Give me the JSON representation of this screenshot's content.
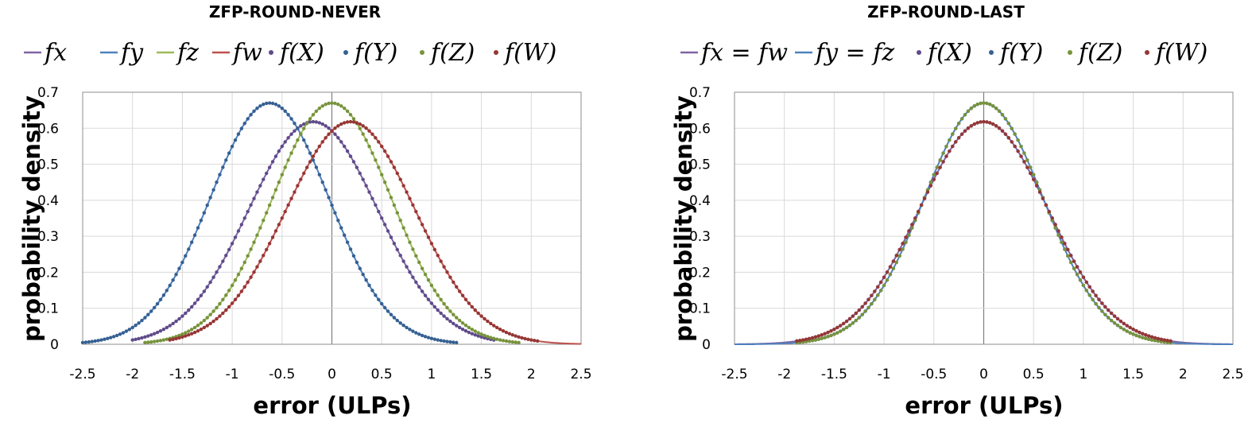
{
  "colors": {
    "fx": "#8064a2",
    "fy": "#4f81bd",
    "fz": "#9bbb59",
    "fw": "#c0504d",
    "fX": "#5f4b8b",
    "fY": "#366092",
    "fZ": "#77933c",
    "fW": "#953735"
  },
  "chart_data": [
    {
      "type": "line",
      "title": "ZFP-ROUND-NEVER",
      "xlabel": "error (ULPs)",
      "ylabel": "probability density",
      "xlim": [
        -2.5,
        2.5
      ],
      "ylim": [
        0,
        0.7
      ],
      "xticks": [
        "-2.5",
        "-2",
        "-1.5",
        "-1",
        "-0.5",
        "0",
        "0.5",
        "1",
        "1.5",
        "2",
        "2.5"
      ],
      "yticks": [
        "0",
        "0.1",
        "0.2",
        "0.3",
        "0.4",
        "0.5",
        "0.6",
        "0.7"
      ],
      "grid": true,
      "legend": "top",
      "series": [
        {
          "name": "fx",
          "kind": "line",
          "color_key": "fx",
          "mean": -0.1875,
          "sd": 0.6455,
          "peak": 0.618,
          "min": -2.0,
          "max": 1.625
        },
        {
          "name": "fy",
          "kind": "line",
          "color_key": "fy",
          "mean": -0.625,
          "sd": 0.5954,
          "peak": 0.67,
          "min": -2.5,
          "max": 1.25
        },
        {
          "name": "fz",
          "kind": "line",
          "color_key": "fz",
          "mean": 0.0,
          "sd": 0.5954,
          "peak": 0.67,
          "min": -1.875,
          "max": 1.875
        },
        {
          "name": "fw",
          "kind": "line",
          "color_key": "fw",
          "mean": 0.1875,
          "sd": 0.6455,
          "peak": 0.618,
          "min": -1.625,
          "max": 2.5
        },
        {
          "name": "f(X)",
          "kind": "markers",
          "color_key": "fX",
          "mean": -0.1875,
          "sd": 0.6455,
          "peak": 0.618,
          "min": -2.0,
          "max": 1.625
        },
        {
          "name": "f(Y)",
          "kind": "markers",
          "color_key": "fY",
          "mean": -0.625,
          "sd": 0.5954,
          "peak": 0.67,
          "min": -2.5,
          "max": 1.25
        },
        {
          "name": "f(Z)",
          "kind": "markers",
          "color_key": "fZ",
          "mean": 0.0,
          "sd": 0.5954,
          "peak": 0.67,
          "min": -1.875,
          "max": 1.875
        },
        {
          "name": "f(W)",
          "kind": "markers",
          "color_key": "fW",
          "mean": 0.1875,
          "sd": 0.6455,
          "peak": 0.618,
          "min": -1.625,
          "max": 2.0625
        }
      ]
    },
    {
      "type": "line",
      "title": "ZFP-ROUND-LAST",
      "xlabel": "error (ULPs)",
      "ylabel": "probability density",
      "xlim": [
        -2.5,
        2.5
      ],
      "ylim": [
        0,
        0.7
      ],
      "xticks": [
        "-2.5",
        "-2",
        "-1.5",
        "-1",
        "-0.5",
        "0",
        "0.5",
        "1",
        "1.5",
        "2",
        "2.5"
      ],
      "yticks": [
        "0",
        "0.1",
        "0.2",
        "0.3",
        "0.4",
        "0.5",
        "0.6",
        "0.7"
      ],
      "grid": true,
      "legend": "top",
      "series": [
        {
          "name": "fx = fw",
          "kind": "line",
          "color_key": "fx",
          "mean": 0.0,
          "sd": 0.6455,
          "peak": 0.618,
          "min": -2.5,
          "max": 2.5
        },
        {
          "name": "fy = fz",
          "kind": "line",
          "color_key": "fy",
          "mean": 0.0,
          "sd": 0.5954,
          "peak": 0.67,
          "min": -2.5,
          "max": 2.5
        },
        {
          "name": "f(X)",
          "kind": "markers",
          "color_key": "fX",
          "mean": 0.0,
          "sd": 0.6455,
          "peak": 0.618,
          "min": -1.875,
          "max": 1.875
        },
        {
          "name": "f(Y)",
          "kind": "markers",
          "color_key": "fY",
          "mean": 0.0,
          "sd": 0.5954,
          "peak": 0.67,
          "min": -1.875,
          "max": 1.875
        },
        {
          "name": "f(Z)",
          "kind": "markers",
          "color_key": "fZ",
          "mean": 0.0,
          "sd": 0.5954,
          "peak": 0.67,
          "min": -1.875,
          "max": 1.875
        },
        {
          "name": "f(W)",
          "kind": "markers",
          "color_key": "fW",
          "mean": 0.0,
          "sd": 0.6455,
          "peak": 0.618,
          "min": -1.875,
          "max": 1.875
        }
      ]
    }
  ]
}
